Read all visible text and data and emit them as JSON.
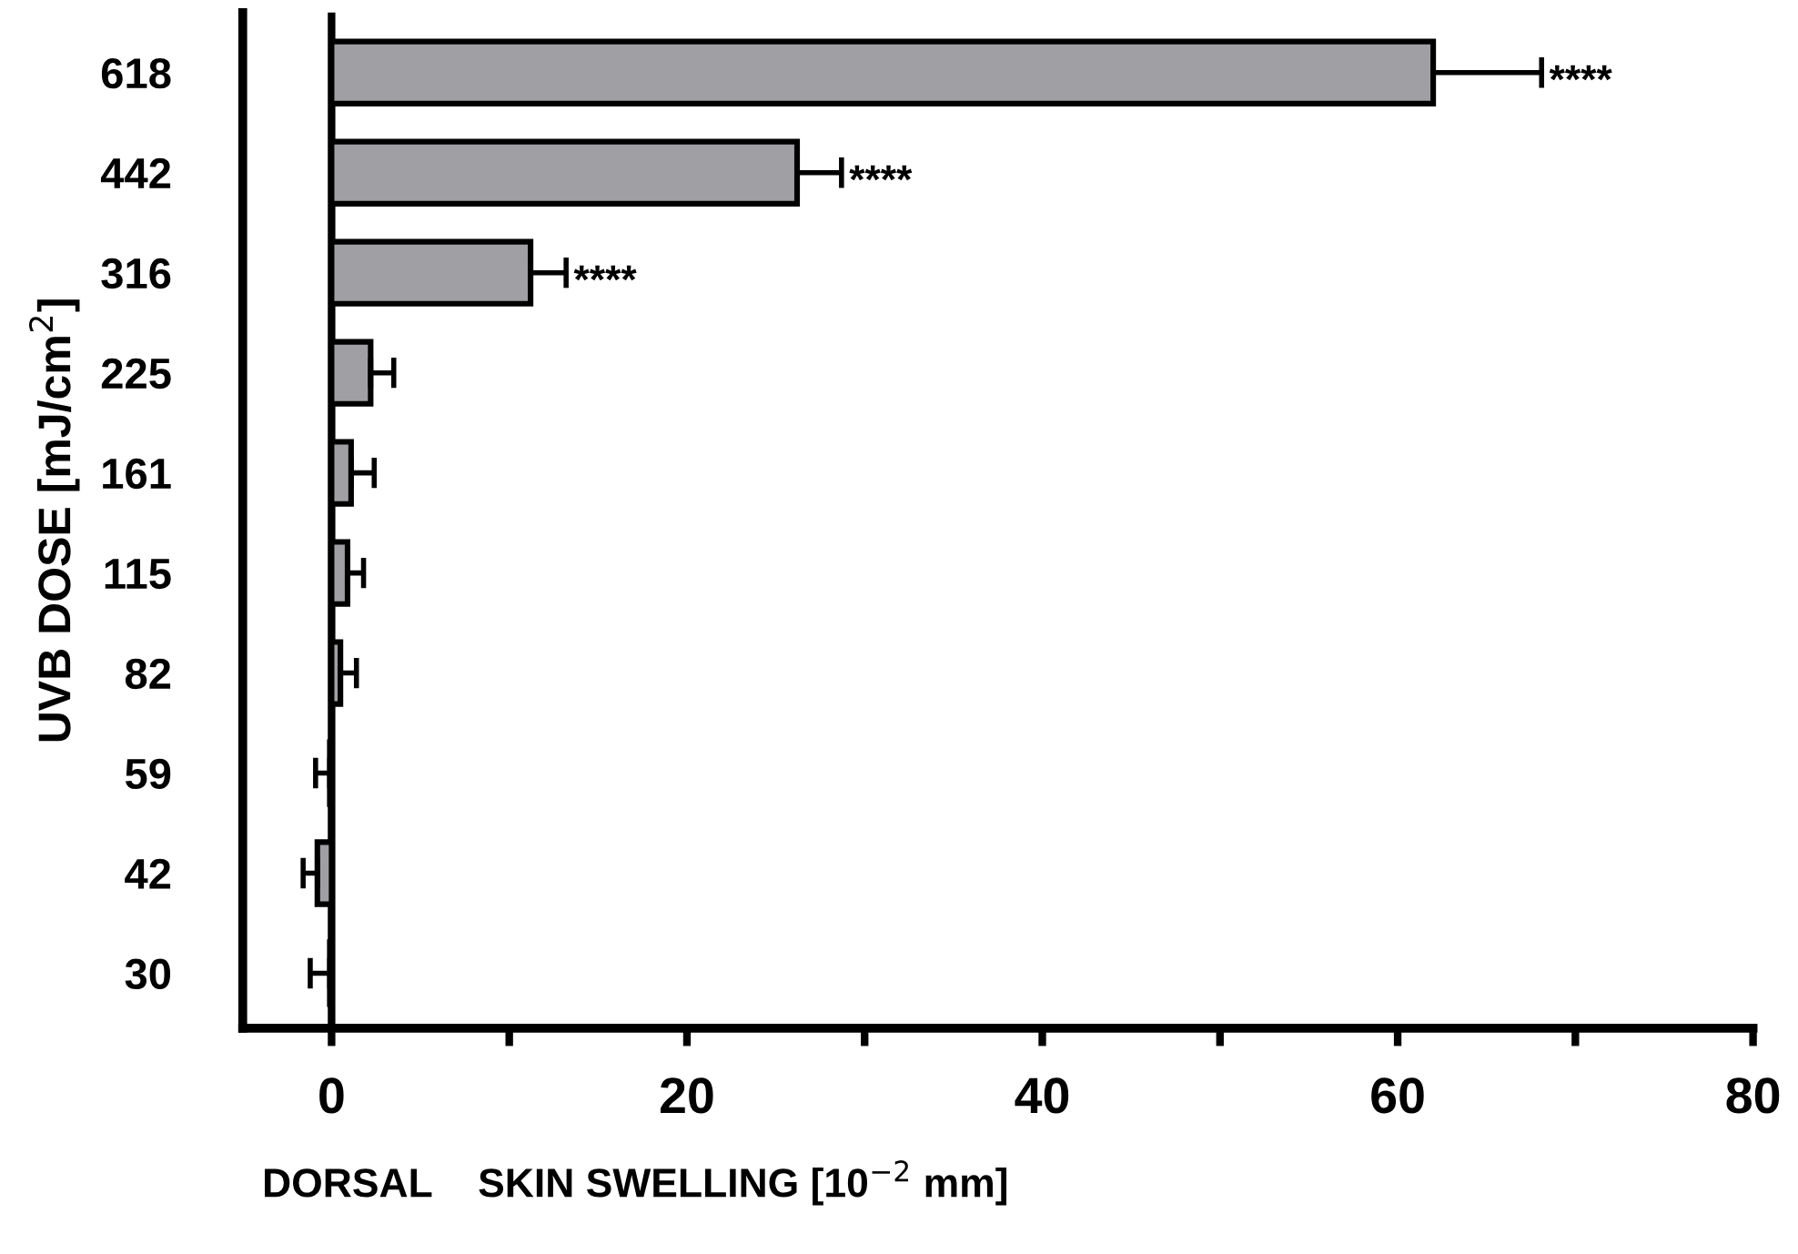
{
  "chart_data": {
    "type": "bar",
    "orientation": "horizontal",
    "xlabel": "DORSAL    SKIN SWELLING [10$^{−2}$ mm]",
    "ylabel": "UVB DOSE [mJ/cm$^{2}$]",
    "categories": [
      "618",
      "442",
      "316",
      "225",
      "161",
      "115",
      "82",
      "59",
      "42",
      "30"
    ],
    "values": [
      62.0,
      26.2,
      11.2,
      2.2,
      1.1,
      0.9,
      0.5,
      -0.1,
      -0.8,
      -0.1
    ],
    "errors": [
      [
        62.0,
        68.1
      ],
      [
        26.2,
        28.7
      ],
      [
        11.2,
        13.2
      ],
      [
        2.2,
        3.5
      ],
      [
        1.1,
        2.4
      ],
      [
        0.9,
        1.8
      ],
      [
        0.5,
        1.4
      ],
      [
        -0.9,
        -0.1
      ],
      [
        -1.6,
        -0.8
      ],
      [
        -1.2,
        -0.1
      ]
    ],
    "color": "#a0a0a4",
    "xlim": [
      -5,
      80
    ],
    "xticks": [
      0,
      {
        "value": 10,
        "label": null
      },
      20,
      {
        "value": 30,
        "label": null
      },
      40,
      {
        "value": 50,
        "label": null
      },
      60,
      {
        "value": 70,
        "label": null
      },
      80
    ],
    "ref_lines": [
      {
        "axis": "x",
        "value": 0
      }
    ],
    "annotations": [
      {
        "text": "****",
        "x": 68.1,
        "y": "618"
      },
      {
        "text": "****",
        "x": 28.7,
        "y": "442"
      },
      {
        "text": "****",
        "x": 13.2,
        "y": "316"
      }
    ],
    "grid": false
  }
}
